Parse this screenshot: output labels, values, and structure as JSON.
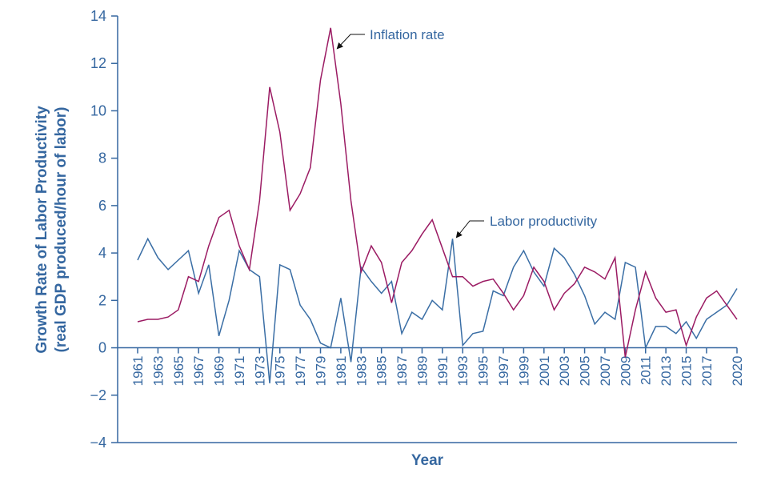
{
  "chart_data": {
    "type": "line",
    "xlabel": "Year",
    "ylabel": [
      "Growth Rate of Labor Productivity",
      "(real GDP produced/hour of labor)"
    ],
    "annotations": [
      "Inflation rate",
      "Labor productivity"
    ],
    "x": [
      1961,
      1962,
      1963,
      1964,
      1965,
      1966,
      1967,
      1968,
      1969,
      1970,
      1971,
      1972,
      1973,
      1974,
      1975,
      1976,
      1977,
      1978,
      1979,
      1980,
      1981,
      1982,
      1983,
      1984,
      1985,
      1986,
      1987,
      1988,
      1989,
      1990,
      1991,
      1992,
      1993,
      1994,
      1995,
      1996,
      1997,
      1998,
      1999,
      2000,
      2001,
      2002,
      2003,
      2004,
      2005,
      2006,
      2007,
      2008,
      2009,
      2010,
      2011,
      2012,
      2013,
      2014,
      2015,
      2016,
      2017,
      2018,
      2019,
      2020
    ],
    "xlim": [
      1961,
      2020
    ],
    "xticks": [
      1961,
      1963,
      1965,
      1967,
      1969,
      1971,
      1973,
      1975,
      1977,
      1979,
      1981,
      1983,
      1985,
      1987,
      1989,
      1991,
      1993,
      1995,
      1997,
      1999,
      2001,
      2003,
      2005,
      2007,
      2009,
      2011,
      2013,
      2015,
      2017,
      2020
    ],
    "ylim": [
      -4,
      14
    ],
    "yticks": [
      {
        "value": -4,
        "label": "−4"
      },
      {
        "value": -2,
        "label": "−2"
      },
      0,
      2,
      4,
      6,
      8,
      10,
      12,
      14
    ],
    "series": [
      {
        "name": "Labor productivity",
        "color": "#3a6ea5",
        "values": [
          3.7,
          4.6,
          3.8,
          3.3,
          3.7,
          4.1,
          2.3,
          3.5,
          0.5,
          2.0,
          4.1,
          3.3,
          3.0,
          -1.5,
          3.5,
          3.3,
          1.8,
          1.2,
          0.2,
          0.0,
          2.1,
          -0.6,
          3.4,
          2.8,
          2.3,
          2.8,
          0.6,
          1.5,
          1.2,
          2.0,
          1.6,
          4.6,
          0.1,
          0.6,
          0.7,
          2.4,
          2.2,
          3.4,
          4.1,
          3.2,
          2.6,
          4.2,
          3.8,
          3.1,
          2.2,
          1.0,
          1.5,
          1.2,
          3.6,
          3.4,
          0.0,
          0.9,
          0.9,
          0.6,
          1.1,
          0.4,
          1.2,
          1.5,
          1.8,
          2.5
        ]
      },
      {
        "name": "Inflation rate",
        "color": "#9b1b63",
        "values": [
          1.1,
          1.2,
          1.2,
          1.3,
          1.6,
          3.0,
          2.8,
          4.3,
          5.5,
          5.8,
          4.3,
          3.3,
          6.2,
          11.0,
          9.1,
          5.8,
          6.5,
          7.6,
          11.3,
          13.5,
          10.3,
          6.2,
          3.2,
          4.3,
          3.6,
          1.9,
          3.6,
          4.1,
          4.8,
          5.4,
          4.2,
          3.0,
          3.0,
          2.6,
          2.8,
          2.9,
          2.3,
          1.6,
          2.2,
          3.4,
          2.8,
          1.6,
          2.3,
          2.7,
          3.4,
          3.2,
          2.9,
          3.8,
          -0.4,
          1.6,
          3.2,
          2.1,
          1.5,
          1.6,
          0.1,
          1.3,
          2.1,
          2.4,
          1.8,
          1.2
        ]
      }
    ]
  }
}
